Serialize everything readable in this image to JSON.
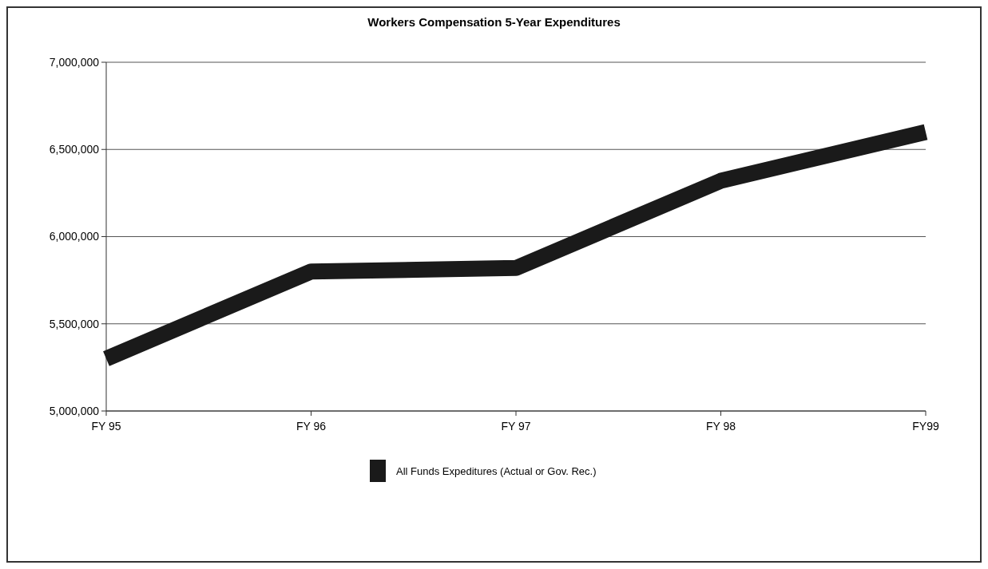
{
  "chart_data": {
    "type": "line",
    "title": "Workers Compensation 5-Year Expenditures",
    "categories": [
      "FY 95",
      "FY 96",
      "FY 97",
      "FY 98",
      "FY99"
    ],
    "series": [
      {
        "name": "All Funds Expeditures (Actual or Gov. Rec.)",
        "color": "#1a1a1a",
        "values": [
          5300000,
          5800000,
          5820000,
          6320000,
          6600000
        ]
      }
    ],
    "ylim": [
      5000000,
      7000000
    ],
    "yticks": [
      {
        "value": 5000000,
        "label": "5,000,000"
      },
      {
        "value": 5500000,
        "label": "5,500,000"
      },
      {
        "value": 6000000,
        "label": "6,000,000"
      },
      {
        "value": 6500000,
        "label": "6,500,000"
      },
      {
        "value": 7000000,
        "label": "7,000,000"
      }
    ],
    "grid": "y",
    "legend": "bottom",
    "line_style": "solid"
  }
}
